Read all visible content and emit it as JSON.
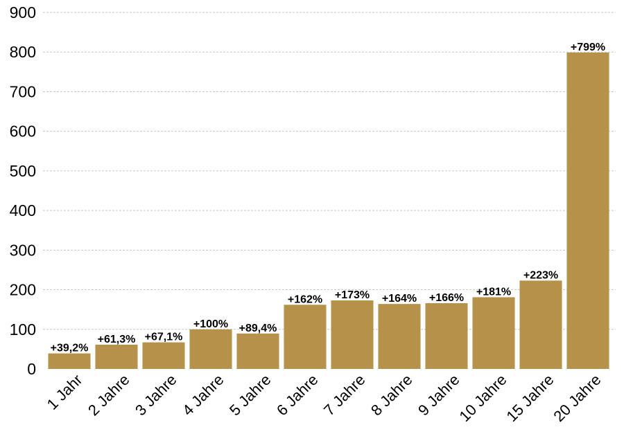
{
  "chart_data": {
    "type": "bar",
    "title": "",
    "xlabel": "",
    "ylabel": "",
    "categories": [
      "1 Jahr",
      "2 Jahre",
      "3 Jahre",
      "4 Jahre",
      "5 Jahre",
      "6 Jahre",
      "7 Jahre",
      "8 Jahre",
      "9 Jahre",
      "10 Jahre",
      "15 Jahre",
      "20 Jahre"
    ],
    "values": [
      39.2,
      61.3,
      67.1,
      100,
      89.4,
      162,
      173,
      164,
      166,
      181,
      223,
      799
    ],
    "data_labels": [
      "+39,2%",
      "+61,3%",
      "+67,1%",
      "+100%",
      "+89,4%",
      "+162%",
      "+173%",
      "+164%",
      "+166%",
      "+181%",
      "+223%",
      "+799%"
    ],
    "ylim": [
      0,
      900
    ],
    "yticks": [
      "0",
      "100",
      "200",
      "300",
      "400",
      "500",
      "600",
      "700",
      "800",
      "900"
    ],
    "grid": true,
    "legend": "none",
    "bar_color": "#b5914a"
  }
}
